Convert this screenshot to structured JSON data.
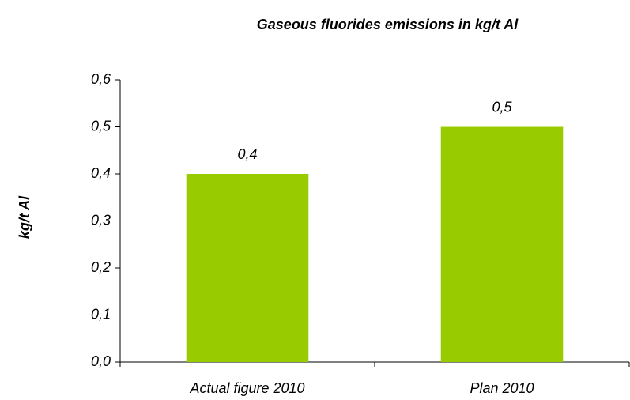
{
  "chart_data": {
    "type": "bar",
    "title": "Gaseous fluorides emissions in kg/t Al",
    "y_label": "kg/t Al",
    "categories": [
      "Actual figure 2010",
      "Plan 2010"
    ],
    "values": [
      0.4,
      0.5
    ],
    "value_labels": [
      "0,4",
      "0,5"
    ],
    "color": "#99cc00",
    "ylim": [
      0,
      0.6
    ],
    "yticks": [
      {
        "value": 0,
        "label": "0,0"
      },
      {
        "value": 0.1,
        "label": "0,1"
      },
      {
        "value": 0.2,
        "label": "0,2"
      },
      {
        "value": 0.3,
        "label": "0,3"
      },
      {
        "value": 0.4,
        "label": "0,4"
      },
      {
        "value": 0.5,
        "label": "0,5"
      },
      {
        "value": 0.6,
        "label": "0,6"
      }
    ],
    "grid": false
  }
}
